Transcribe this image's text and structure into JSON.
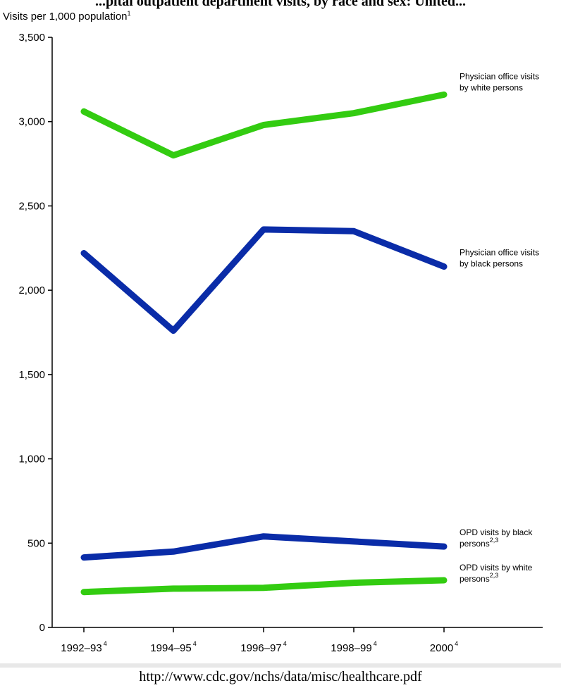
{
  "chart_data": {
    "type": "line",
    "title": "...pital outpatient department visits, by race and sex: United...",
    "ylabel": "Visits per 1,000 population",
    "ylabel_sup": "1",
    "ylim": [
      0,
      3500
    ],
    "yticks": [
      "0",
      "500",
      "1,000",
      "1,500",
      "2,000",
      "2,500",
      "3,000",
      "3,500"
    ],
    "ytick_values": [
      0,
      500,
      1000,
      1500,
      2000,
      2500,
      3000,
      3500
    ],
    "categories": [
      "1992–93",
      "1994–95",
      "1996–97",
      "1998–99",
      "2000"
    ],
    "category_sup": "4",
    "grid": false,
    "series": [
      {
        "name_lines": [
          "Physician office visits",
          "by white persons"
        ],
        "name_sup": "",
        "color": "#33cc11",
        "values": [
          3060,
          2800,
          2980,
          3050,
          3160
        ]
      },
      {
        "name_lines": [
          "Physician office visits",
          "by black persons"
        ],
        "name_sup": "",
        "color": "#0a2ca8",
        "values": [
          2220,
          1760,
          2360,
          2350,
          2140
        ]
      },
      {
        "name_lines": [
          "OPD visits by black",
          "persons"
        ],
        "name_sup": "2,3",
        "color": "#0a2ca8",
        "values": [
          415,
          450,
          540,
          510,
          480
        ]
      },
      {
        "name_lines": [
          "OPD visits by white",
          "persons"
        ],
        "name_sup": "2,3",
        "color": "#33cc11",
        "values": [
          210,
          230,
          235,
          265,
          280
        ]
      }
    ]
  },
  "source": "http://www.cdc.gov/nchs/data/misc/healthcare.pdf"
}
